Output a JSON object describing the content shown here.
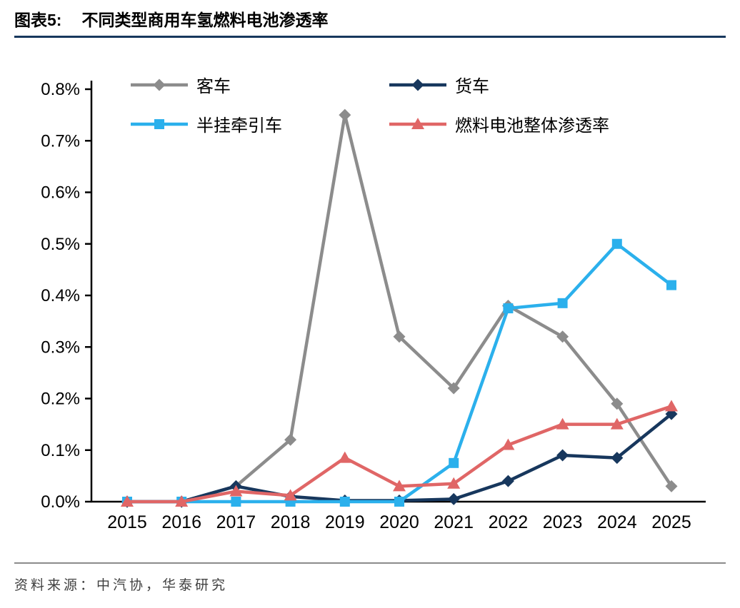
{
  "header": {
    "title_prefix": "图表5:",
    "title": "不同类型商用车氢燃料电池渗透率"
  },
  "footer": {
    "source": "资料来源：中汽协，华泰研究"
  },
  "chart_data": {
    "type": "line",
    "title": "不同类型商用车氢燃料电池渗透率",
    "xlabel": "",
    "ylabel": "",
    "grid": false,
    "legend_position": "top",
    "ylim": [
      0,
      0.8
    ],
    "y_ticks": [
      "0.0%",
      "0.1%",
      "0.2%",
      "0.3%",
      "0.4%",
      "0.5%",
      "0.6%",
      "0.7%",
      "0.8%"
    ],
    "categories": [
      "2015",
      "2016",
      "2017",
      "2018",
      "2019",
      "2020",
      "2021",
      "2022",
      "2023",
      "2024",
      "2025"
    ],
    "series": [
      {
        "key": "bus",
        "name": "客车",
        "color": "#8C8C8C",
        "marker": "diamond",
        "values": [
          0,
          0,
          0.03,
          0.12,
          0.75,
          0.32,
          0.22,
          0.38,
          0.32,
          0.19,
          0.03
        ]
      },
      {
        "key": "truck",
        "name": "货车",
        "color": "#17375D",
        "marker": "diamond",
        "values": [
          0,
          0,
          0.03,
          0.01,
          0.002,
          0.002,
          0.005,
          0.04,
          0.09,
          0.085,
          0.17
        ]
      },
      {
        "key": "semi-trailer",
        "name": "半挂牵引车",
        "color": "#2BB0EC",
        "marker": "square",
        "values": [
          0,
          0,
          0,
          0,
          0,
          0,
          0.075,
          0.375,
          0.385,
          0.5,
          0.42
        ]
      },
      {
        "key": "overall",
        "name": "燃料电池整体渗透率",
        "color": "#E06666",
        "marker": "triangle",
        "values": [
          0,
          0,
          0.02,
          0.012,
          0.085,
          0.03,
          0.035,
          0.11,
          0.15,
          0.15,
          0.185
        ]
      }
    ]
  }
}
